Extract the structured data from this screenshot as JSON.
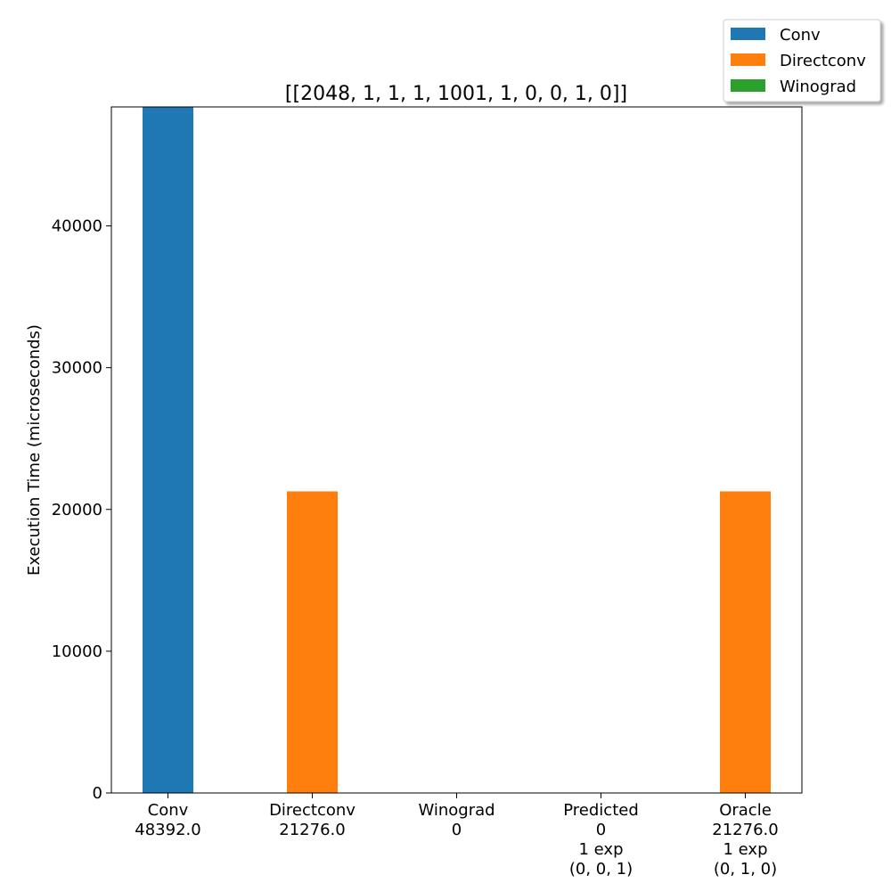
{
  "chart_data": {
    "type": "bar",
    "title": "[[2048, 1, 1, 1, 1001, 1, 0, 0, 1, 0]]",
    "xlabel": "",
    "ylabel": "Execution Time (microseconds)",
    "ylim": [
      0,
      48392
    ],
    "yticks": [
      0,
      10000,
      20000,
      30000,
      40000
    ],
    "categories": [
      {
        "lines": [
          "Conv",
          "48392.0"
        ]
      },
      {
        "lines": [
          "Directconv",
          "21276.0"
        ]
      },
      {
        "lines": [
          "Winograd",
          "0"
        ]
      },
      {
        "lines": [
          "Predicted",
          "0",
          "1 exp",
          "(0, 0, 1)"
        ]
      },
      {
        "lines": [
          "Oracle",
          "21276.0",
          "1 exp",
          "(0, 1, 0)"
        ]
      }
    ],
    "series": [
      {
        "name": "Conv",
        "color": "#1f77b4",
        "values": [
          48392.0,
          0,
          0,
          0,
          0
        ]
      },
      {
        "name": "Directconv",
        "color": "#ff7f0e",
        "values": [
          0,
          21276.0,
          0,
          0,
          21276.0
        ]
      },
      {
        "name": "Winograd",
        "color": "#2ca02c",
        "values": [
          0,
          0,
          0,
          0,
          0
        ]
      }
    ],
    "legend": {
      "placement": "top-right",
      "entries": [
        "Conv",
        "Directconv",
        "Winograd"
      ]
    },
    "grid": false
  }
}
